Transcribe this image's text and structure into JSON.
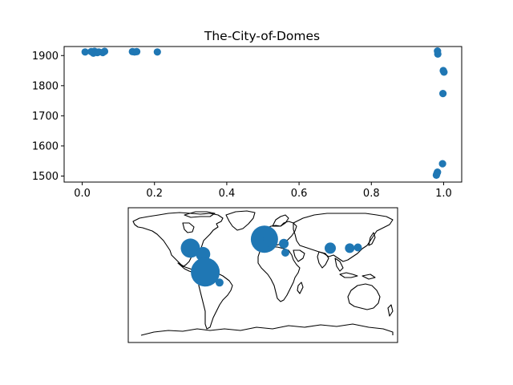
{
  "chart_data": [
    {
      "type": "scatter",
      "title": "The-City-of-Domes",
      "xlim": [
        -0.05,
        1.05
      ],
      "ylim": [
        1480,
        1930
      ],
      "xticks": [
        "0.0",
        "0.2",
        "0.4",
        "0.6",
        "0.8",
        "1.0"
      ],
      "xtick_values": [
        0.0,
        0.2,
        0.4,
        0.6,
        0.8,
        1.0
      ],
      "yticks": [
        "1500",
        "1600",
        "1700",
        "1800",
        "1900"
      ],
      "ytick_values": [
        1500,
        1600,
        1700,
        1800,
        1900
      ],
      "marker_color": "#1f77b4",
      "grid": false,
      "points": [
        {
          "x": 0.008,
          "y": 1912
        },
        {
          "x": 0.025,
          "y": 1913
        },
        {
          "x": 0.029,
          "y": 1911
        },
        {
          "x": 0.031,
          "y": 1908
        },
        {
          "x": 0.034,
          "y": 1914
        },
        {
          "x": 0.038,
          "y": 1912
        },
        {
          "x": 0.042,
          "y": 1910
        },
        {
          "x": 0.046,
          "y": 1912
        },
        {
          "x": 0.057,
          "y": 1910
        },
        {
          "x": 0.062,
          "y": 1914
        },
        {
          "x": 0.139,
          "y": 1913
        },
        {
          "x": 0.145,
          "y": 1912
        },
        {
          "x": 0.151,
          "y": 1913
        },
        {
          "x": 0.208,
          "y": 1912
        },
        {
          "x": 0.983,
          "y": 1915
        },
        {
          "x": 0.984,
          "y": 1905
        },
        {
          "x": 0.999,
          "y": 1850
        },
        {
          "x": 1.001,
          "y": 1845
        },
        {
          "x": 0.998,
          "y": 1774
        },
        {
          "x": 0.997,
          "y": 1541
        },
        {
          "x": 0.983,
          "y": 1513
        },
        {
          "x": 0.981,
          "y": 1507
        },
        {
          "x": 0.98,
          "y": 1503
        }
      ]
    },
    {
      "type": "scatter",
      "projection": "equirectangular world map",
      "xlim": [
        -180,
        180
      ],
      "ylim": [
        -90,
        90
      ],
      "marker_color": "#1f77b4",
      "land_outline": true,
      "points": [
        {
          "lon": -97,
          "lat": 36,
          "size": 12
        },
        {
          "lon": -80,
          "lat": 28,
          "size": 9
        },
        {
          "lon": -77,
          "lat": 4,
          "size": 18
        },
        {
          "lon": -58,
          "lat": -10,
          "size": 5
        },
        {
          "lon": 2,
          "lat": 48,
          "size": 17
        },
        {
          "lon": 10,
          "lat": 47,
          "size": 9
        },
        {
          "lon": 28,
          "lat": 42,
          "size": 6
        },
        {
          "lon": 30,
          "lat": 30,
          "size": 5
        },
        {
          "lon": 90,
          "lat": 36,
          "size": 7
        },
        {
          "lon": 116,
          "lat": 36,
          "size": 6
        },
        {
          "lon": 127,
          "lat": 37,
          "size": 5
        }
      ]
    }
  ]
}
